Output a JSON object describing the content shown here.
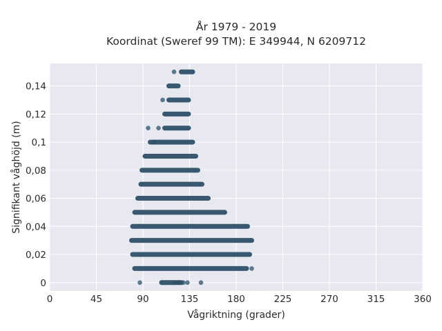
{
  "chart_data": {
    "type": "scatter",
    "title": "År 1979 - 2019",
    "subtitle": "Koordinat (Sweref 99 TM): E 349944, N 6209712",
    "xlabel": "Vågriktning (grader)",
    "ylabel": "Signifikant våghöjd (m)",
    "xlim": [
      0,
      360
    ],
    "ylim": [
      -0.006,
      0.156
    ],
    "xticks": [
      0,
      45,
      90,
      135,
      180,
      225,
      270,
      315,
      360
    ],
    "xtick_labels": [
      "0",
      "45",
      "90",
      "135",
      "180",
      "225",
      "270",
      "315",
      "360"
    ],
    "yticks": [
      0,
      0.02,
      0.04,
      0.06,
      0.08,
      0.1,
      0.12,
      0.14
    ],
    "ytick_labels": [
      "0",
      "0,02",
      "0,04",
      "0,06",
      "0,08",
      "0,1",
      "0,12",
      "0,14"
    ],
    "grid": true,
    "marker_color": "#2e5169",
    "background_color": "#e8e8f0",
    "bands": [
      {
        "y": 0.0,
        "x_min": 108,
        "x_max": 127
      },
      {
        "y": 0.01,
        "x_min": 82,
        "x_max": 190
      },
      {
        "y": 0.02,
        "x_min": 80,
        "x_max": 193
      },
      {
        "y": 0.03,
        "x_min": 79,
        "x_max": 195
      },
      {
        "y": 0.04,
        "x_min": 80,
        "x_max": 191
      },
      {
        "y": 0.05,
        "x_min": 82,
        "x_max": 169
      },
      {
        "y": 0.06,
        "x_min": 85,
        "x_max": 153
      },
      {
        "y": 0.07,
        "x_min": 88,
        "x_max": 147
      },
      {
        "y": 0.08,
        "x_min": 89,
        "x_max": 143
      },
      {
        "y": 0.09,
        "x_min": 92,
        "x_max": 141
      },
      {
        "y": 0.1,
        "x_min": 97,
        "x_max": 138
      },
      {
        "y": 0.11,
        "x_min": 111,
        "x_max": 134
      },
      {
        "y": 0.12,
        "x_min": 111,
        "x_max": 134
      },
      {
        "y": 0.13,
        "x_min": 115,
        "x_max": 134
      },
      {
        "y": 0.14,
        "x_min": 115,
        "x_max": 124
      },
      {
        "y": 0.15,
        "x_min": 127,
        "x_max": 138
      }
    ],
    "outliers": [
      {
        "x": 87,
        "y": 0.0
      },
      {
        "x": 121,
        "y": 0.0
      },
      {
        "x": 125,
        "y": 0.0
      },
      {
        "x": 129,
        "y": 0.0
      },
      {
        "x": 133,
        "y": 0.0
      },
      {
        "x": 146,
        "y": 0.0
      },
      {
        "x": 195,
        "y": 0.01
      },
      {
        "x": 95,
        "y": 0.11
      },
      {
        "x": 105,
        "y": 0.11
      },
      {
        "x": 109,
        "y": 0.13
      },
      {
        "x": 120,
        "y": 0.15
      },
      {
        "x": 101,
        "y": 0.1
      }
    ]
  }
}
